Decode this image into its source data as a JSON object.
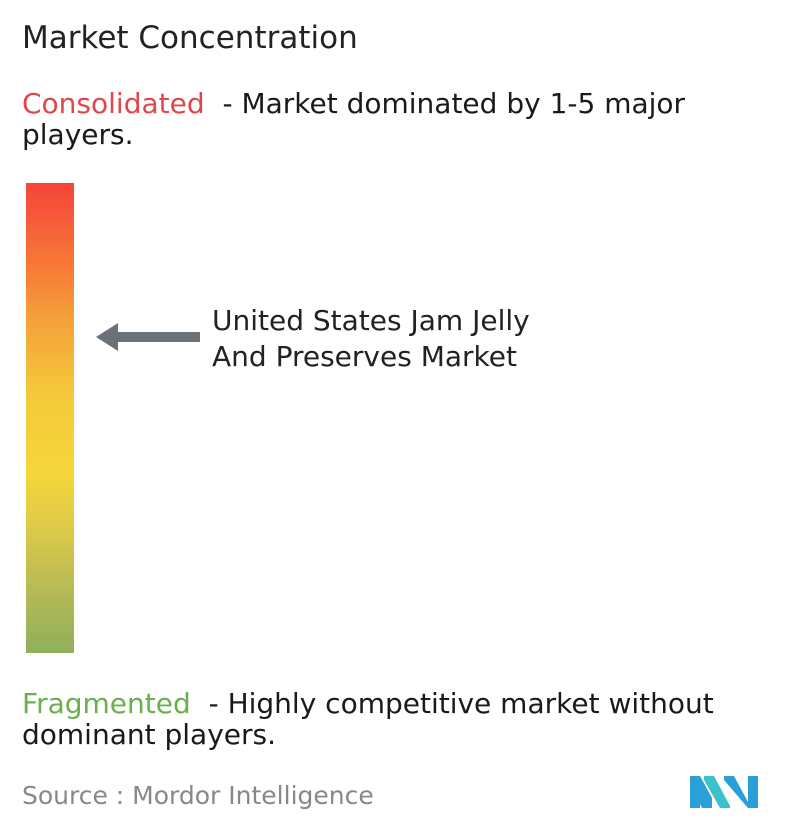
{
  "title": "Market Concentration",
  "consolidated": {
    "keyword": "Consolidated",
    "description": "- Market dominated by 1-5 major players.",
    "color": "#e0474c"
  },
  "fragmented": {
    "keyword": "Fragmented",
    "description": "- Highly competitive market without dominant players.",
    "color": "#6ab04c"
  },
  "market": {
    "label_line1": "United States Jam Jelly",
    "label_line2": "And Preserves Market",
    "arrow_icon": "left-arrow-icon"
  },
  "gradient_colors": [
    "#f5453a",
    "#f59e3a",
    "#f5d63a",
    "#8fb05c"
  ],
  "source": "Source :  Mordor Intelligence",
  "logo_icon": "mordor-intelligence-logo"
}
